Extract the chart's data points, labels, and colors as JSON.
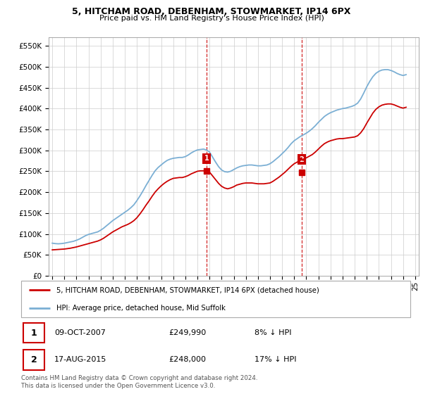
{
  "title": "5, HITCHAM ROAD, DEBENHAM, STOWMARKET, IP14 6PX",
  "subtitle": "Price paid vs. HM Land Registry's House Price Index (HPI)",
  "legend_line1": "5, HITCHAM ROAD, DEBENHAM, STOWMARKET, IP14 6PX (detached house)",
  "legend_line2": "HPI: Average price, detached house, Mid Suffolk",
  "sale1_date": "09-OCT-2007",
  "sale1_price": "£249,990",
  "sale1_hpi": "8% ↓ HPI",
  "sale2_date": "17-AUG-2015",
  "sale2_price": "£248,000",
  "sale2_hpi": "17% ↓ HPI",
  "footnote": "Contains HM Land Registry data © Crown copyright and database right 2024.\nThis data is licensed under the Open Government Licence v3.0.",
  "ylim": [
    0,
    570000
  ],
  "yticks": [
    0,
    50000,
    100000,
    150000,
    200000,
    250000,
    300000,
    350000,
    400000,
    450000,
    500000,
    550000
  ],
  "red_color": "#cc0000",
  "blue_color": "#7bafd4",
  "vline_color": "#cc0000",
  "bg_color": "#ffffff",
  "grid_color": "#cccccc",
  "sale1_x": 2007.77,
  "sale1_y": 249990,
  "sale2_x": 2015.63,
  "sale2_y": 248000,
  "hpi_data_x": [
    1995,
    1995.25,
    1995.5,
    1995.75,
    1996,
    1996.25,
    1996.5,
    1996.75,
    1997,
    1997.25,
    1997.5,
    1997.75,
    1998,
    1998.25,
    1998.5,
    1998.75,
    1999,
    1999.25,
    1999.5,
    1999.75,
    2000,
    2000.25,
    2000.5,
    2000.75,
    2001,
    2001.25,
    2001.5,
    2001.75,
    2002,
    2002.25,
    2002.5,
    2002.75,
    2003,
    2003.25,
    2003.5,
    2003.75,
    2004,
    2004.25,
    2004.5,
    2004.75,
    2005,
    2005.25,
    2005.5,
    2005.75,
    2006,
    2006.25,
    2006.5,
    2006.75,
    2007,
    2007.25,
    2007.5,
    2007.75,
    2008,
    2008.25,
    2008.5,
    2008.75,
    2009,
    2009.25,
    2009.5,
    2009.75,
    2010,
    2010.25,
    2010.5,
    2010.75,
    2011,
    2011.25,
    2011.5,
    2011.75,
    2012,
    2012.25,
    2012.5,
    2012.75,
    2013,
    2013.25,
    2013.5,
    2013.75,
    2014,
    2014.25,
    2014.5,
    2014.75,
    2015,
    2015.25,
    2015.5,
    2015.75,
    2016,
    2016.25,
    2016.5,
    2016.75,
    2017,
    2017.25,
    2017.5,
    2017.75,
    2018,
    2018.25,
    2018.5,
    2018.75,
    2019,
    2019.25,
    2019.5,
    2019.75,
    2020,
    2020.25,
    2020.5,
    2020.75,
    2021,
    2021.25,
    2021.5,
    2021.75,
    2022,
    2022.25,
    2022.5,
    2022.75,
    2023,
    2023.25,
    2023.5,
    2023.75,
    2024,
    2024.25
  ],
  "hpi_data_y": [
    78000,
    77000,
    76500,
    77000,
    78000,
    79500,
    81000,
    82500,
    85000,
    88000,
    92000,
    96000,
    99000,
    101000,
    103000,
    105000,
    109000,
    114000,
    120000,
    126000,
    132000,
    137000,
    142000,
    147000,
    152000,
    157000,
    163000,
    170000,
    180000,
    191000,
    203000,
    216000,
    228000,
    240000,
    251000,
    259000,
    265000,
    271000,
    276000,
    279000,
    281000,
    282000,
    283000,
    283000,
    285000,
    289000,
    294000,
    298000,
    301000,
    302000,
    303000,
    301000,
    296000,
    284000,
    272000,
    261000,
    253000,
    249000,
    248000,
    250000,
    254000,
    258000,
    261000,
    263000,
    264000,
    265000,
    265000,
    264000,
    263000,
    263000,
    264000,
    265000,
    268000,
    273000,
    279000,
    285000,
    292000,
    299000,
    307000,
    316000,
    323000,
    328000,
    333000,
    337000,
    341000,
    346000,
    352000,
    359000,
    367000,
    374000,
    381000,
    386000,
    390000,
    393000,
    396000,
    398000,
    400000,
    401000,
    403000,
    405000,
    408000,
    413000,
    423000,
    437000,
    452000,
    465000,
    476000,
    484000,
    489000,
    492000,
    493000,
    493000,
    491000,
    488000,
    484000,
    481000,
    479000,
    481000
  ],
  "price_data_x": [
    1995,
    1995.25,
    1995.5,
    1995.75,
    1996,
    1996.25,
    1996.5,
    1996.75,
    1997,
    1997.25,
    1997.5,
    1997.75,
    1998,
    1998.25,
    1998.5,
    1998.75,
    1999,
    1999.25,
    1999.5,
    1999.75,
    2000,
    2000.25,
    2000.5,
    2000.75,
    2001,
    2001.25,
    2001.5,
    2001.75,
    2002,
    2002.25,
    2002.5,
    2002.75,
    2003,
    2003.25,
    2003.5,
    2003.75,
    2004,
    2004.25,
    2004.5,
    2004.75,
    2005,
    2005.25,
    2005.5,
    2005.75,
    2006,
    2006.25,
    2006.5,
    2006.75,
    2007,
    2007.25,
    2007.5,
    2007.75,
    2008,
    2008.25,
    2008.5,
    2008.75,
    2009,
    2009.25,
    2009.5,
    2009.75,
    2010,
    2010.25,
    2010.5,
    2010.75,
    2011,
    2011.25,
    2011.5,
    2011.75,
    2012,
    2012.25,
    2012.5,
    2012.75,
    2013,
    2013.25,
    2013.5,
    2013.75,
    2014,
    2014.25,
    2014.5,
    2014.75,
    2015,
    2015.25,
    2015.5,
    2015.75,
    2016,
    2016.25,
    2016.5,
    2016.75,
    2017,
    2017.25,
    2017.5,
    2017.75,
    2018,
    2018.25,
    2018.5,
    2018.75,
    2019,
    2019.25,
    2019.5,
    2019.75,
    2020,
    2020.25,
    2020.5,
    2020.75,
    2021,
    2021.25,
    2021.5,
    2021.75,
    2022,
    2022.25,
    2022.5,
    2022.75,
    2023,
    2023.25,
    2023.5,
    2023.75,
    2024,
    2024.25
  ],
  "price_data_y": [
    62000,
    62500,
    63000,
    63500,
    64000,
    65000,
    66000,
    67500,
    69000,
    71000,
    73000,
    75000,
    77000,
    79000,
    81000,
    83000,
    86000,
    90000,
    95000,
    100000,
    105000,
    109000,
    113000,
    117000,
    120000,
    123000,
    127000,
    132000,
    139000,
    148000,
    158000,
    169000,
    179000,
    190000,
    200000,
    208000,
    215000,
    221000,
    226000,
    230000,
    233000,
    234000,
    235000,
    235000,
    237000,
    240000,
    244000,
    247000,
    250000,
    251000,
    251000,
    250000,
    248000,
    239000,
    230000,
    221000,
    214000,
    210000,
    208000,
    210000,
    213000,
    217000,
    219000,
    221000,
    222000,
    222000,
    222000,
    221000,
    220000,
    220000,
    220000,
    221000,
    222000,
    226000,
    231000,
    236000,
    242000,
    248000,
    255000,
    262000,
    268000,
    272000,
    276000,
    279000,
    282000,
    286000,
    290000,
    296000,
    303000,
    310000,
    316000,
    320000,
    323000,
    325000,
    327000,
    328000,
    328000,
    329000,
    330000,
    331000,
    332000,
    335000,
    342000,
    352000,
    365000,
    377000,
    389000,
    398000,
    404000,
    408000,
    410000,
    411000,
    411000,
    409000,
    406000,
    403000,
    401000,
    403000
  ],
  "xlim": [
    1994.7,
    2025.3
  ],
  "xtick_years": [
    1995,
    1996,
    1997,
    1998,
    1999,
    2000,
    2001,
    2002,
    2003,
    2004,
    2005,
    2006,
    2007,
    2008,
    2009,
    2010,
    2011,
    2012,
    2013,
    2014,
    2015,
    2016,
    2017,
    2018,
    2019,
    2020,
    2021,
    2022,
    2023,
    2024,
    2025
  ]
}
